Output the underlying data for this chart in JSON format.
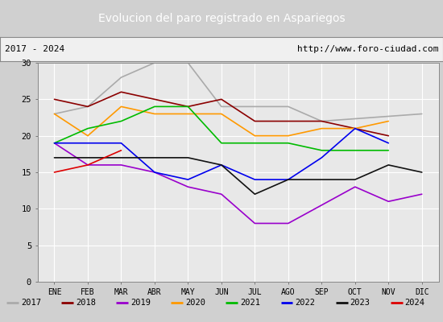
{
  "title": "Evolucion del paro registrado en Aspariegos",
  "subtitle_left": "2017 - 2024",
  "subtitle_right": "http://www.foro-ciudad.com",
  "months": [
    "ENE",
    "FEB",
    "MAR",
    "ABR",
    "MAY",
    "JUN",
    "JUL",
    "AGO",
    "SEP",
    "OCT",
    "NOV",
    "DIC"
  ],
  "series": {
    "2017": {
      "color": "#aaaaaa",
      "data": [
        23,
        24,
        28,
        30,
        30,
        24,
        null,
        24,
        22,
        null,
        null,
        23
      ]
    },
    "2018": {
      "color": "#8b0000",
      "data": [
        25,
        24,
        26,
        25,
        24,
        25,
        22,
        22,
        22,
        21,
        20,
        null
      ]
    },
    "2019": {
      "color": "#9900cc",
      "data": [
        19,
        16,
        16,
        15,
        13,
        12,
        8,
        8,
        null,
        13,
        11,
        12
      ]
    },
    "2020": {
      "color": "#ff9900",
      "data": [
        23,
        20,
        24,
        23,
        23,
        23,
        20,
        20,
        21,
        21,
        22,
        null
      ]
    },
    "2021": {
      "color": "#00bb00",
      "data": [
        19,
        21,
        22,
        24,
        24,
        19,
        19,
        19,
        18,
        18,
        18,
        null
      ]
    },
    "2022": {
      "color": "#0000ee",
      "data": [
        19,
        19,
        19,
        15,
        14,
        16,
        14,
        14,
        17,
        21,
        19,
        null
      ]
    },
    "2023": {
      "color": "#111111",
      "data": [
        17,
        17,
        17,
        17,
        17,
        16,
        12,
        14,
        14,
        14,
        16,
        15
      ]
    },
    "2024": {
      "color": "#dd0000",
      "data": [
        15,
        16,
        18,
        null,
        null,
        null,
        null,
        null,
        null,
        null,
        null,
        null
      ]
    }
  },
  "ylim": [
    0,
    30
  ],
  "yticks": [
    0,
    5,
    10,
    15,
    20,
    25,
    30
  ],
  "title_bg": "#5b8dd9",
  "title_color": "white",
  "subtitle_bg": "#f0f0f0",
  "plot_bg": "#e8e8e8",
  "grid_color": "#ffffff",
  "legend_bg": "#d0d0d0",
  "fig_bg": "#d0d0d0"
}
